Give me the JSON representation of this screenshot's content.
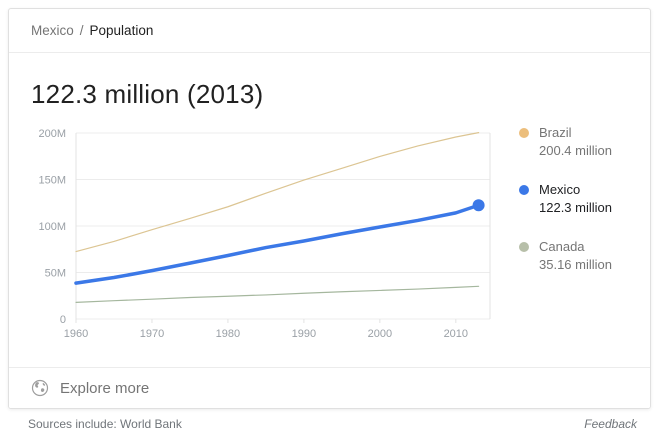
{
  "breadcrumb": {
    "parent": "Mexico",
    "separator": "/",
    "current": "Population"
  },
  "headline": {
    "value": "122.3 million (2013)"
  },
  "chart_data": {
    "type": "line",
    "title": "Population over time",
    "x": [
      1960,
      1965,
      1970,
      1975,
      1980,
      1985,
      1990,
      1995,
      2000,
      2005,
      2010,
      2013
    ],
    "series": [
      {
        "name": "Brazil",
        "value_label": "200.4 million",
        "dot_color": "#ecbe7c",
        "line_color": "#dcc593",
        "values": [
          72.5,
          83.4,
          96.0,
          108.1,
          120.7,
          135.3,
          149.4,
          162.0,
          174.8,
          186.1,
          195.7,
          200.4
        ],
        "emphasis": false,
        "end_dot": false
      },
      {
        "name": "Mexico",
        "value_label": "122.3 million",
        "dot_color": "#3b78e7",
        "line_color": "#3b78e7",
        "values": [
          38.6,
          44.6,
          52.0,
          60.1,
          68.3,
          76.8,
          83.9,
          91.7,
          98.9,
          106.0,
          114.1,
          122.3
        ],
        "emphasis": true,
        "end_dot": true
      },
      {
        "name": "Canada",
        "value_label": "35.16 million",
        "dot_color": "#b7bfa9",
        "line_color": "#a5b79e",
        "values": [
          17.9,
          19.7,
          21.3,
          23.1,
          24.5,
          25.9,
          27.7,
          29.3,
          30.7,
          32.2,
          34.0,
          35.16
        ],
        "emphasis": false,
        "end_dot": false
      }
    ],
    "xlim": [
      1960,
      2014.5
    ],
    "ylim": [
      0,
      200
    ],
    "yticks": [
      {
        "value": 0,
        "label": "0"
      },
      {
        "value": 50,
        "label": "50M"
      },
      {
        "value": 100,
        "label": "100M"
      },
      {
        "value": 150,
        "label": "150M"
      },
      {
        "value": 200,
        "label": "200M"
      }
    ],
    "xticks": [
      1960,
      1970,
      1980,
      1990,
      2000,
      2010
    ],
    "grid": true,
    "legend_position": "right",
    "colors": {
      "grid": "#ececec",
      "frame": "#e3e3e3",
      "axis_text": "#9aa0a6"
    }
  },
  "explore": {
    "label": "Explore more"
  },
  "footer": {
    "sources": "Sources include: World Bank",
    "feedback": "Feedback"
  }
}
